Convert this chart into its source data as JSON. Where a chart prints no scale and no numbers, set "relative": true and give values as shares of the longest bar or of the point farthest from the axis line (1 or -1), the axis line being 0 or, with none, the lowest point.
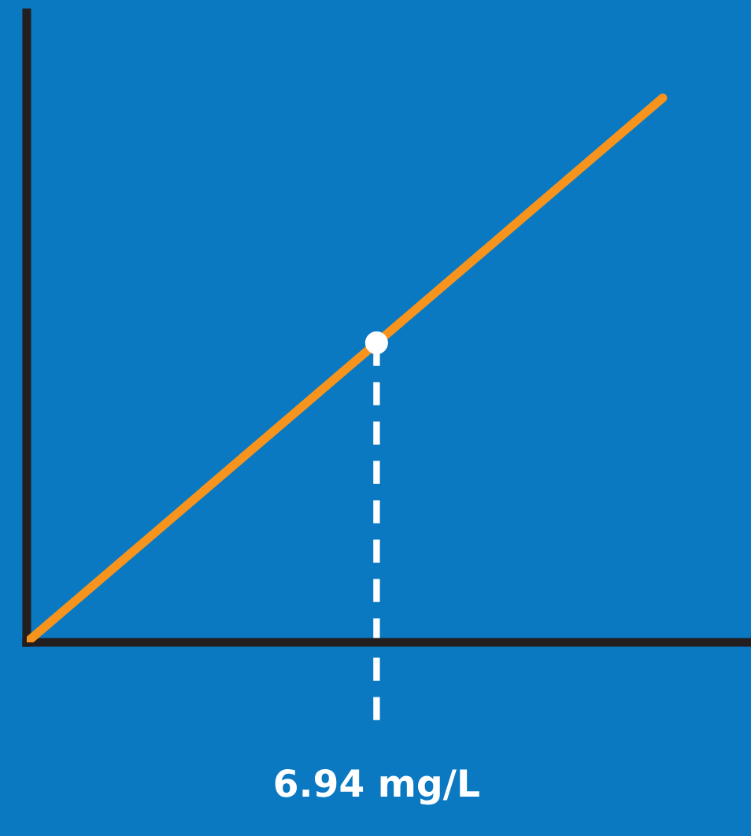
{
  "chart_data": {
    "type": "line",
    "relative": true,
    "categories": [
      null,
      null
    ],
    "line_style": "solid",
    "series": [
      {
        "color": "#f7941d",
        "values": [
          0,
          1
        ]
      }
    ],
    "ref_lines": [
      {
        "axis": "y",
        "value": 0,
        "color": "#231f20"
      }
    ],
    "annotations": [
      {
        "text": "6.94 mg/L",
        "y": 0.55
      }
    ]
  }
}
